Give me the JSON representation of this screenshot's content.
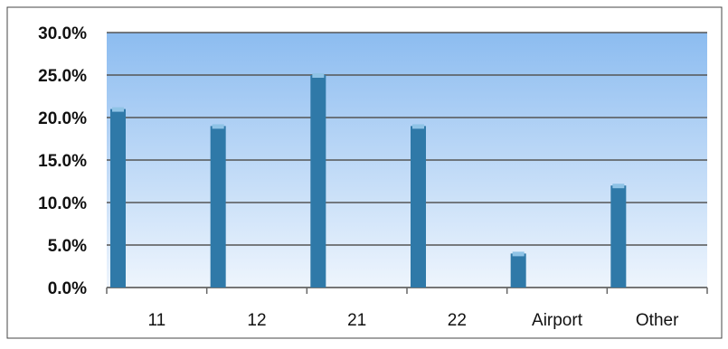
{
  "chart_data": {
    "type": "bar",
    "categories": [
      "11",
      "12",
      "21",
      "22",
      "Airport",
      "Other"
    ],
    "values": [
      21.0,
      19.0,
      25.0,
      19.0,
      4.0,
      12.0
    ],
    "title": "",
    "xlabel": "",
    "ylabel": "",
    "ylim": [
      0,
      30
    ],
    "yticks": [
      "0.0%",
      "5.0%",
      "10.0%",
      "15.0%",
      "20.0%",
      "25.0%",
      "30.0%"
    ],
    "grid": true,
    "legend": "none",
    "colors": {
      "bar": "#2f79a8",
      "bar_cap": "#8fc3e6",
      "plot_top": "#8cbcf0",
      "plot_bottom": "#eef5fd",
      "gridline": "#555555"
    }
  }
}
